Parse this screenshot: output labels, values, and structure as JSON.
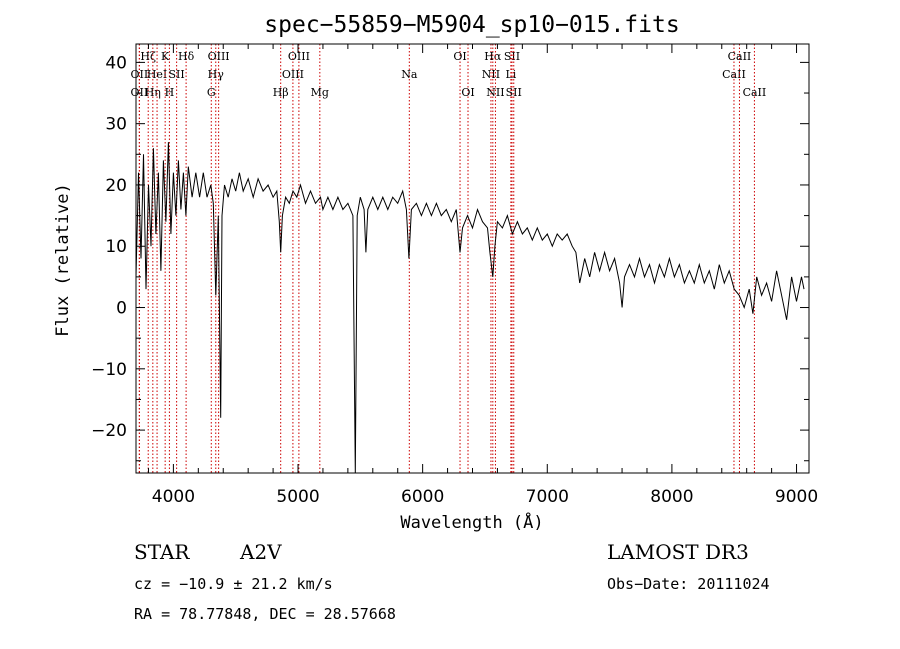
{
  "chart_data": {
    "type": "line",
    "title": "spec−55859−M5904_sp10−015.fits",
    "xlabel": "Wavelength (Å)",
    "ylabel": "Flux (relative)",
    "xlim": [
      3700,
      9100
    ],
    "ylim": [
      -27,
      43
    ],
    "x_ticks": [
      {
        "value": 4000,
        "label": "4000"
      },
      {
        "value": 5000,
        "label": "5000"
      },
      {
        "value": 6000,
        "label": "6000"
      },
      {
        "value": 7000,
        "label": "7000"
      },
      {
        "value": 8000,
        "label": "8000"
      },
      {
        "value": 9000,
        "label": "9000"
      }
    ],
    "y_ticks": [
      {
        "value": -20,
        "label": "−20"
      },
      {
        "value": -10,
        "label": "−10"
      },
      {
        "value": 0,
        "label": "0"
      },
      {
        "value": 10,
        "label": "10"
      },
      {
        "value": 20,
        "label": "20"
      },
      {
        "value": 30,
        "label": "30"
      },
      {
        "value": 40,
        "label": "40"
      }
    ],
    "series": [
      {
        "name": "flux",
        "color": "#000000",
        "points": [
          [
            3700,
            5
          ],
          [
            3720,
            22
          ],
          [
            3740,
            8
          ],
          [
            3760,
            25
          ],
          [
            3780,
            3
          ],
          [
            3800,
            20
          ],
          [
            3820,
            10
          ],
          [
            3840,
            26
          ],
          [
            3860,
            12
          ],
          [
            3880,
            22
          ],
          [
            3900,
            6
          ],
          [
            3920,
            24
          ],
          [
            3940,
            14
          ],
          [
            3960,
            27
          ],
          [
            3980,
            12
          ],
          [
            4000,
            22
          ],
          [
            4020,
            15
          ],
          [
            4040,
            24
          ],
          [
            4060,
            16
          ],
          [
            4080,
            22
          ],
          [
            4100,
            15
          ],
          [
            4120,
            23
          ],
          [
            4150,
            18
          ],
          [
            4180,
            22
          ],
          [
            4210,
            18
          ],
          [
            4240,
            22
          ],
          [
            4270,
            18
          ],
          [
            4300,
            20
          ],
          [
            4320,
            17
          ],
          [
            4340,
            2
          ],
          [
            4360,
            15
          ],
          [
            4380,
            -18
          ],
          [
            4390,
            15
          ],
          [
            4410,
            20
          ],
          [
            4440,
            18
          ],
          [
            4470,
            21
          ],
          [
            4500,
            19
          ],
          [
            4530,
            22
          ],
          [
            4560,
            19
          ],
          [
            4600,
            21
          ],
          [
            4640,
            18
          ],
          [
            4680,
            21
          ],
          [
            4720,
            19
          ],
          [
            4760,
            20
          ],
          [
            4800,
            18
          ],
          [
            4830,
            19
          ],
          [
            4850,
            14
          ],
          [
            4861,
            9
          ],
          [
            4875,
            15
          ],
          [
            4900,
            18
          ],
          [
            4930,
            17
          ],
          [
            4960,
            19
          ],
          [
            4990,
            18
          ],
          [
            5020,
            20
          ],
          [
            5060,
            17
          ],
          [
            5100,
            19
          ],
          [
            5140,
            17
          ],
          [
            5180,
            18
          ],
          [
            5200,
            16
          ],
          [
            5240,
            18
          ],
          [
            5280,
            16
          ],
          [
            5320,
            18
          ],
          [
            5360,
            16
          ],
          [
            5400,
            17
          ],
          [
            5440,
            15
          ],
          [
            5460,
            -27
          ],
          [
            5475,
            15
          ],
          [
            5500,
            18
          ],
          [
            5530,
            16
          ],
          [
            5545,
            9
          ],
          [
            5560,
            16
          ],
          [
            5600,
            18
          ],
          [
            5640,
            16
          ],
          [
            5680,
            18
          ],
          [
            5720,
            16
          ],
          [
            5760,
            18
          ],
          [
            5800,
            17
          ],
          [
            5840,
            19
          ],
          [
            5870,
            16
          ],
          [
            5890,
            8
          ],
          [
            5910,
            16
          ],
          [
            5950,
            17
          ],
          [
            5990,
            15
          ],
          [
            6030,
            17
          ],
          [
            6070,
            15
          ],
          [
            6110,
            17
          ],
          [
            6150,
            15
          ],
          [
            6190,
            16
          ],
          [
            6230,
            14
          ],
          [
            6270,
            16
          ],
          [
            6300,
            9
          ],
          [
            6320,
            13
          ],
          [
            6360,
            15
          ],
          [
            6400,
            13
          ],
          [
            6440,
            16
          ],
          [
            6480,
            14
          ],
          [
            6520,
            13
          ],
          [
            6540,
            9
          ],
          [
            6563,
            5
          ],
          [
            6580,
            10
          ],
          [
            6600,
            14
          ],
          [
            6640,
            13
          ],
          [
            6680,
            15
          ],
          [
            6720,
            12
          ],
          [
            6760,
            14
          ],
          [
            6800,
            12
          ],
          [
            6840,
            13
          ],
          [
            6880,
            11
          ],
          [
            6920,
            13
          ],
          [
            6960,
            11
          ],
          [
            7000,
            12
          ],
          [
            7040,
            10
          ],
          [
            7080,
            12
          ],
          [
            7120,
            11
          ],
          [
            7160,
            12
          ],
          [
            7200,
            10
          ],
          [
            7230,
            9
          ],
          [
            7260,
            4
          ],
          [
            7300,
            8
          ],
          [
            7340,
            5
          ],
          [
            7380,
            9
          ],
          [
            7420,
            6
          ],
          [
            7460,
            9
          ],
          [
            7500,
            6
          ],
          [
            7540,
            8
          ],
          [
            7580,
            4
          ],
          [
            7600,
            0
          ],
          [
            7620,
            5
          ],
          [
            7660,
            7
          ],
          [
            7700,
            5
          ],
          [
            7740,
            8
          ],
          [
            7780,
            5
          ],
          [
            7820,
            7
          ],
          [
            7860,
            4
          ],
          [
            7900,
            7
          ],
          [
            7940,
            5
          ],
          [
            7980,
            8
          ],
          [
            8020,
            5
          ],
          [
            8060,
            7
          ],
          [
            8100,
            4
          ],
          [
            8140,
            6
          ],
          [
            8180,
            4
          ],
          [
            8220,
            7
          ],
          [
            8260,
            4
          ],
          [
            8300,
            6
          ],
          [
            8340,
            3
          ],
          [
            8380,
            7
          ],
          [
            8420,
            4
          ],
          [
            8460,
            6
          ],
          [
            8500,
            3
          ],
          [
            8540,
            2
          ],
          [
            8580,
            0
          ],
          [
            8620,
            3
          ],
          [
            8650,
            -1
          ],
          [
            8680,
            5
          ],
          [
            8720,
            2
          ],
          [
            8760,
            4
          ],
          [
            8800,
            1
          ],
          [
            8840,
            6
          ],
          [
            8880,
            2
          ],
          [
            8920,
            -2
          ],
          [
            8960,
            5
          ],
          [
            9000,
            1
          ],
          [
            9040,
            5
          ],
          [
            9060,
            3
          ]
        ]
      }
    ],
    "line_markers": [
      {
        "wavelength": 3727,
        "label": "OII",
        "row": 2
      },
      {
        "wavelength": 3727,
        "label": "OII",
        "row": 1
      },
      {
        "wavelength": 3798,
        "label": "Hζ",
        "row": 0
      },
      {
        "wavelength": 3835,
        "label": "Hη",
        "row": 2
      },
      {
        "wavelength": 3869,
        "label": "HeI",
        "row": 1
      },
      {
        "wavelength": 3934,
        "label": "K",
        "row": 0
      },
      {
        "wavelength": 3968,
        "label": "H",
        "row": 2
      },
      {
        "wavelength": 4026,
        "label": "SII",
        "row": 1
      },
      {
        "wavelength": 4102,
        "label": "Hδ",
        "row": 0
      },
      {
        "wavelength": 4304,
        "label": "G",
        "row": 2
      },
      {
        "wavelength": 4340,
        "label": "Hγ",
        "row": 1
      },
      {
        "wavelength": 4363,
        "label": "OIII",
        "row": 0
      },
      {
        "wavelength": 4861,
        "label": "Hβ",
        "row": 2
      },
      {
        "wavelength": 4959,
        "label": "OIII",
        "row": 1
      },
      {
        "wavelength": 5007,
        "label": "OIII",
        "row": 0
      },
      {
        "wavelength": 5175,
        "label": "Mg",
        "row": 2
      },
      {
        "wavelength": 5893,
        "label": "Na",
        "row": 1
      },
      {
        "wavelength": 6300,
        "label": "OI",
        "row": 0
      },
      {
        "wavelength": 6364,
        "label": "OI",
        "row": 2
      },
      {
        "wavelength": 6548,
        "label": "NII",
        "row": 1
      },
      {
        "wavelength": 6563,
        "label": "Hα",
        "row": 0
      },
      {
        "wavelength": 6584,
        "label": "NII",
        "row": 2
      },
      {
        "wavelength": 6708,
        "label": "Li",
        "row": 1
      },
      {
        "wavelength": 6717,
        "label": "SII",
        "row": 0
      },
      {
        "wavelength": 6731,
        "label": "SII",
        "row": 2
      },
      {
        "wavelength": 8498,
        "label": "CaII",
        "row": 1
      },
      {
        "wavelength": 8542,
        "label": "CaII",
        "row": 0
      },
      {
        "wavelength": 8662,
        "label": "CaII",
        "row": 2
      }
    ],
    "marker_color": "#cc0000"
  },
  "info": {
    "class": "STAR",
    "subclass": "A2V",
    "survey": "LAMOST DR3",
    "cz": "cz = −10.9 ± 21.2 km/s",
    "obs_date": "Obs−Date: 20111024",
    "radec": "RA =  78.77848, DEC =  28.57668"
  }
}
